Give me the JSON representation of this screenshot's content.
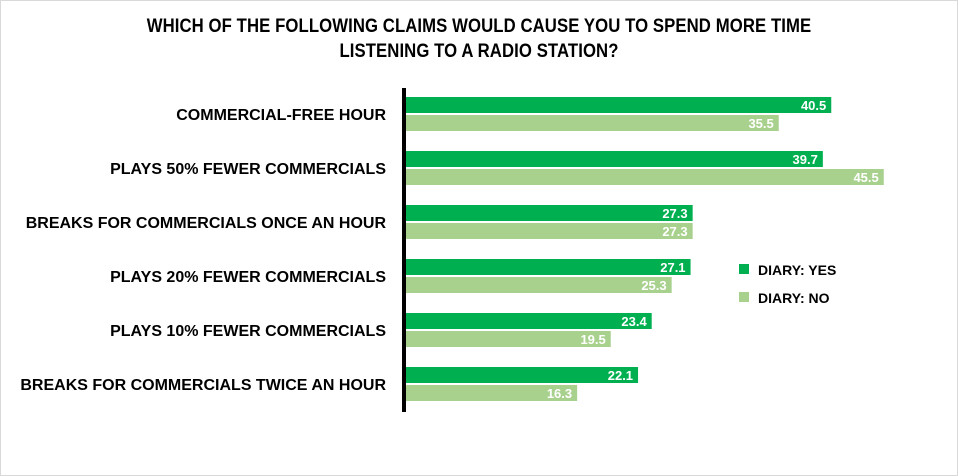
{
  "chart_data": {
    "type": "bar",
    "orientation": "horizontal",
    "title_lines": [
      "WHICH OF THE FOLLOWING  CLAIMS WOULD CAUSE YOU TO SPEND MORE TIME",
      "LISTENING TO A RADIO STATION?"
    ],
    "categories": [
      "COMMERCIAL-FREE HOUR",
      "PLAYS 50% FEWER COMMERCIALS",
      "BREAKS FOR COMMERCIALS ONCE AN HOUR",
      "PLAYS 20% FEWER COMMERCIALS",
      "PLAYS 10% FEWER COMMERCIALS",
      "BREAKS FOR COMMERCIALS TWICE AN HOUR"
    ],
    "series": [
      {
        "name": "DIARY: YES",
        "color": "#00b050",
        "values": [
          40.5,
          39.7,
          27.3,
          27.1,
          23.4,
          22.1
        ],
        "labels": [
          "40.5",
          "39.7",
          "27.3",
          "27.1",
          "23.4",
          "22.1"
        ]
      },
      {
        "name": "DIARY: NO",
        "color": "#a9d18e",
        "values": [
          35.5,
          45.5,
          27.3,
          25.3,
          19.5,
          16.3
        ],
        "labels": [
          "35.5",
          "45.5",
          "27.3",
          "25.3",
          "19.5",
          "16.3"
        ]
      }
    ],
    "xlim": [
      0,
      50
    ],
    "grid": false,
    "axis_color": "#000000",
    "legend_position": "right"
  }
}
